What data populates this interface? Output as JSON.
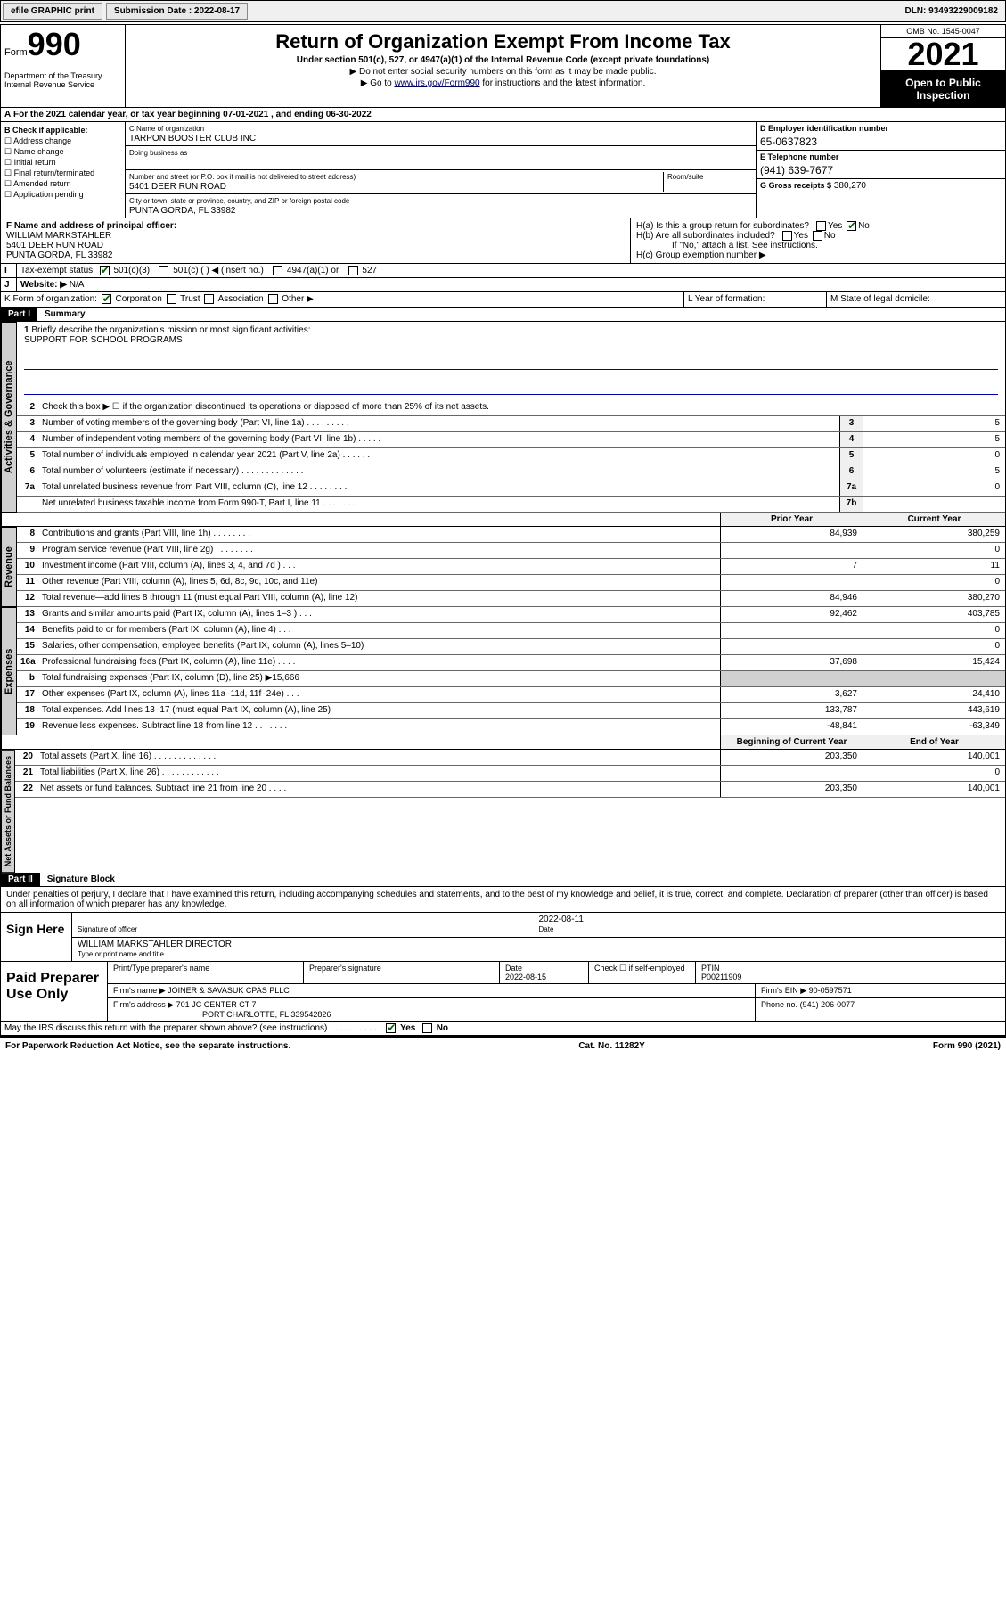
{
  "topbar": {
    "efile": "efile GRAPHIC print",
    "subdate_lbl": "Submission Date : 2022-08-17",
    "dln": "DLN: 93493229009182"
  },
  "hdr": {
    "form": "Form",
    "num": "990",
    "dept": "Department of the Treasury Internal Revenue Service",
    "title": "Return of Organization Exempt From Income Tax",
    "sub": "Under section 501(c), 527, or 4947(a)(1) of the Internal Revenue Code (except private foundations)",
    "note1": "▶ Do not enter social security numbers on this form as it may be made public.",
    "note2_pre": "▶ Go to ",
    "note2_link": "www.irs.gov/Form990",
    "note2_post": " for instructions and the latest information.",
    "omb": "OMB No. 1545-0047",
    "year": "2021",
    "open": "Open to Public Inspection"
  },
  "A": {
    "line": "For the 2021 calendar year, or tax year beginning 07-01-2021   , and ending 06-30-2022"
  },
  "B": {
    "lbl": "B Check if applicable:",
    "opts": [
      "Address change",
      "Name change",
      "Initial return",
      "Final return/terminated",
      "Amended return",
      "Application pending"
    ]
  },
  "C": {
    "name_lbl": "C Name of organization",
    "name": "TARPON BOOSTER CLUB INC",
    "dba_lbl": "Doing business as",
    "dba": "",
    "addr_lbl": "Number and street (or P.O. box if mail is not delivered to street address)",
    "suite_lbl": "Room/suite",
    "addr": "5401 DEER RUN ROAD",
    "city_lbl": "City or town, state or province, country, and ZIP or foreign postal code",
    "city": "PUNTA GORDA, FL  33982"
  },
  "D": {
    "lbl": "D Employer identification number",
    "val": "65-0637823"
  },
  "E": {
    "lbl": "E Telephone number",
    "val": "(941) 639-7677"
  },
  "G": {
    "lbl": "G Gross receipts $",
    "val": "380,270"
  },
  "F": {
    "lbl": "F  Name and address of principal officer:",
    "name": "WILLIAM MARKSTAHLER",
    "addr1": "5401 DEER RUN ROAD",
    "addr2": "PUNTA GORDA, FL  33982"
  },
  "H": {
    "a": "H(a)  Is this a group return for subordinates?",
    "b": "H(b)  Are all subordinates included?",
    "bnote": "If \"No,\" attach a list. See instructions.",
    "c": "H(c)  Group exemption number ▶"
  },
  "I": {
    "lbl": "Tax-exempt status:",
    "o1": "501(c)(3)",
    "o2": "501(c) (  ) ◀ (insert no.)",
    "o3": "4947(a)(1) or",
    "o4": "527"
  },
  "J": {
    "lbl": "Website: ▶",
    "val": "N/A"
  },
  "K": {
    "lbl": "K Form of organization:",
    "o1": "Corporation",
    "o2": "Trust",
    "o3": "Association",
    "o4": "Other ▶"
  },
  "L": {
    "lbl": "L Year of formation:",
    "val": ""
  },
  "M": {
    "lbl": "M State of legal domicile:",
    "val": ""
  },
  "partI": {
    "hdr": "Part I",
    "title": "Summary"
  },
  "mission": {
    "num": "1",
    "txt": "Briefly describe the organization's mission or most significant activities:",
    "val": "SUPPORT FOR SCHOOL PROGRAMS"
  },
  "line2": {
    "num": "2",
    "txt": "Check this box ▶ ☐  if the organization discontinued its operations or disposed of more than 25% of its net assets."
  },
  "gov": [
    {
      "n": "3",
      "t": "Number of voting members of the governing body (Part VI, line 1a)  .   .   .   .   .   .   .   .   .",
      "b": "3",
      "v": "5"
    },
    {
      "n": "4",
      "t": "Number of independent voting members of the governing body (Part VI, line 1b)  .   .   .   .   .",
      "b": "4",
      "v": "5"
    },
    {
      "n": "5",
      "t": "Total number of individuals employed in calendar year 2021 (Part V, line 2a)  .   .   .   .   .   .",
      "b": "5",
      "v": "0"
    },
    {
      "n": "6",
      "t": "Total number of volunteers (estimate if necessary)  .   .   .   .   .   .   .   .   .   .   .   .   .",
      "b": "6",
      "v": "5"
    },
    {
      "n": "7a",
      "t": "Total unrelated business revenue from Part VIII, column (C), line 12  .   .   .   .   .   .   .   .",
      "b": "7a",
      "v": "0"
    },
    {
      "n": "",
      "t": "Net unrelated business taxable income from Form 990-T, Part I, line 11  .   .   .   .   .   .   .",
      "b": "7b",
      "v": ""
    }
  ],
  "colhdr": {
    "c1": "Prior Year",
    "c2": "Current Year"
  },
  "rev": [
    {
      "n": "8",
      "t": "Contributions and grants (Part VIII, line 1h)   .   .   .   .   .   .   .   .",
      "p": "84,939",
      "c": "380,259"
    },
    {
      "n": "9",
      "t": "Program service revenue (Part VIII, line 2g)   .   .   .   .   .   .   .   .",
      "p": "",
      "c": "0"
    },
    {
      "n": "10",
      "t": "Investment income (Part VIII, column (A), lines 3, 4, and 7d )   .   .   .",
      "p": "7",
      "c": "11"
    },
    {
      "n": "11",
      "t": "Other revenue (Part VIII, column (A), lines 5, 6d, 8c, 9c, 10c, and 11e)",
      "p": "",
      "c": "0"
    },
    {
      "n": "12",
      "t": "Total revenue—add lines 8 through 11 (must equal Part VIII, column (A), line 12)",
      "p": "84,946",
      "c": "380,270"
    }
  ],
  "exp": [
    {
      "n": "13",
      "t": "Grants and similar amounts paid (Part IX, column (A), lines 1–3 )   .   .   .",
      "p": "92,462",
      "c": "403,785"
    },
    {
      "n": "14",
      "t": "Benefits paid to or for members (Part IX, column (A), line 4)   .   .   .",
      "p": "",
      "c": "0"
    },
    {
      "n": "15",
      "t": "Salaries, other compensation, employee benefits (Part IX, column (A), lines 5–10)",
      "p": "",
      "c": "0"
    },
    {
      "n": "16a",
      "t": "Professional fundraising fees (Part IX, column (A), line 11e)   .   .   .   .",
      "p": "37,698",
      "c": "15,424"
    },
    {
      "n": "b",
      "t": "Total fundraising expenses (Part IX, column (D), line 25) ▶15,666",
      "p": "shade",
      "c": "shade"
    },
    {
      "n": "17",
      "t": "Other expenses (Part IX, column (A), lines 11a–11d, 11f–24e)   .   .   .",
      "p": "3,627",
      "c": "24,410"
    },
    {
      "n": "18",
      "t": "Total expenses. Add lines 13–17 (must equal Part IX, column (A), line 25)",
      "p": "133,787",
      "c": "443,619"
    },
    {
      "n": "19",
      "t": "Revenue less expenses. Subtract line 18 from line 12  .   .   .   .   .   .   .",
      "p": "-48,841",
      "c": "-63,349"
    }
  ],
  "nethdr": {
    "c1": "Beginning of Current Year",
    "c2": "End of Year"
  },
  "net": [
    {
      "n": "20",
      "t": "Total assets (Part X, line 16)  .   .   .   .   .   .   .   .   .   .   .   .   .",
      "p": "203,350",
      "c": "140,001"
    },
    {
      "n": "21",
      "t": "Total liabilities (Part X, line 26)  .   .   .   .   .   .   .   .   .   .   .   .",
      "p": "",
      "c": "0"
    },
    {
      "n": "22",
      "t": "Net assets or fund balances. Subtract line 21 from line 20  .   .   .   .",
      "p": "203,350",
      "c": "140,001"
    }
  ],
  "partII": {
    "hdr": "Part II",
    "title": "Signature Block",
    "decl": "Under penalties of perjury, I declare that I have examined this return, including accompanying schedules and statements, and to the best of my knowledge and belief, it is true, correct, and complete. Declaration of preparer (other than officer) is based on all information of which preparer has any knowledge."
  },
  "sign": {
    "here": "Sign Here",
    "sig_lbl": "Signature of officer",
    "date": "2022-08-11",
    "date_lbl": "Date",
    "name": "WILLIAM MARKSTAHLER  DIRECTOR",
    "name_lbl": "Type or print name and title"
  },
  "paid": {
    "lbl": "Paid Preparer Use Only",
    "h": [
      "Print/Type preparer's name",
      "Preparer's signature",
      "Date",
      "",
      "PTIN"
    ],
    "date": "2022-08-15",
    "selfemp": "Check ☐ if self-employed",
    "ptin": "P00211909",
    "firm_lbl": "Firm's name    ▶",
    "firm": "JOINER & SAVASUK CPAS PLLC",
    "ein_lbl": "Firm's EIN ▶",
    "ein": "90-0597571",
    "addr_lbl": "Firm's address ▶",
    "addr1": "701 JC CENTER CT 7",
    "addr2": "PORT CHARLOTTE, FL  339542826",
    "ph_lbl": "Phone no.",
    "ph": "(941) 206-0077"
  },
  "discuss": {
    "q": "May the IRS discuss this return with the preparer shown above? (see instructions)   .   .   .   .   .   .   .   .   .   .",
    "yes": "Yes",
    "no": "No"
  },
  "footer": {
    "l": "For Paperwork Reduction Act Notice, see the separate instructions.",
    "m": "Cat. No. 11282Y",
    "r": "Form 990 (2021)"
  },
  "tabs": {
    "gov": "Activities & Governance",
    "rev": "Revenue",
    "exp": "Expenses",
    "net": "Net Assets or Fund Balances"
  }
}
